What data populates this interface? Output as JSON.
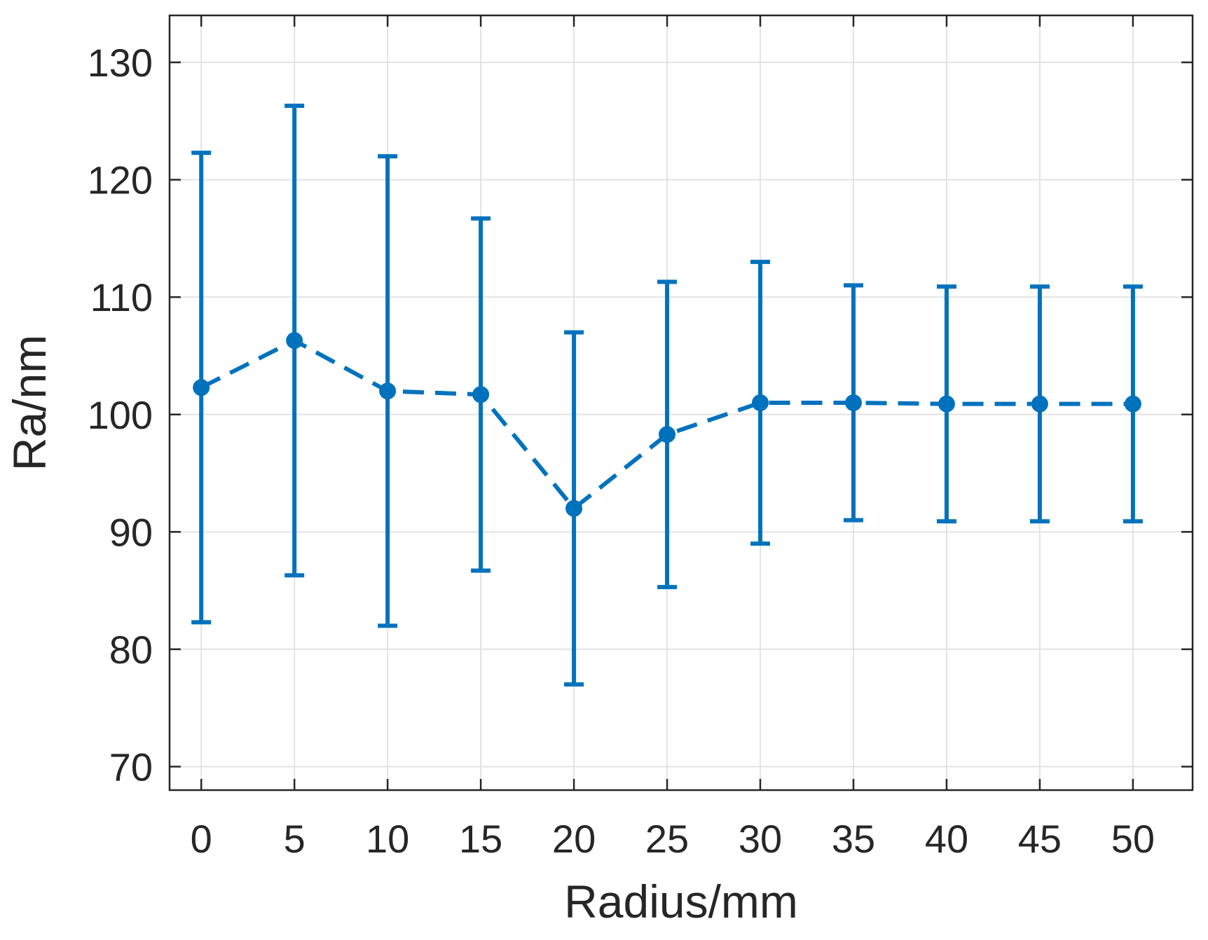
{
  "chart_data": {
    "type": "line",
    "title": "",
    "xlabel": "Radius/mm",
    "ylabel": "Ra/nm",
    "x": [
      0,
      5,
      10,
      15,
      20,
      25,
      30,
      35,
      40,
      45,
      50
    ],
    "xlim": [
      -1.7,
      53.2
    ],
    "ylim": [
      68,
      134
    ],
    "xticks": [
      0,
      5,
      10,
      15,
      20,
      25,
      30,
      35,
      40,
      45,
      50
    ],
    "yticks": [
      70,
      80,
      90,
      100,
      110,
      120,
      130
    ],
    "grid": true,
    "series": [
      {
        "values": [
          102.3,
          106.3,
          102.0,
          101.7,
          92.0,
          98.3,
          101.0,
          101.0,
          100.9,
          100.9,
          100.9
        ],
        "upper": [
          122.3,
          126.3,
          122.0,
          116.7,
          107.0,
          111.3,
          113.0,
          111.0,
          110.9,
          110.9,
          110.9
        ],
        "lower": [
          82.3,
          86.3,
          82.0,
          86.7,
          77.0,
          85.3,
          89.0,
          91.0,
          90.9,
          90.9,
          90.9
        ],
        "line_style": "dashed",
        "marker": "circle",
        "error_bars": true
      }
    ],
    "colors": {
      "series": "#0072BD",
      "grid": "#e3e3e3",
      "axes": "#262626"
    }
  }
}
